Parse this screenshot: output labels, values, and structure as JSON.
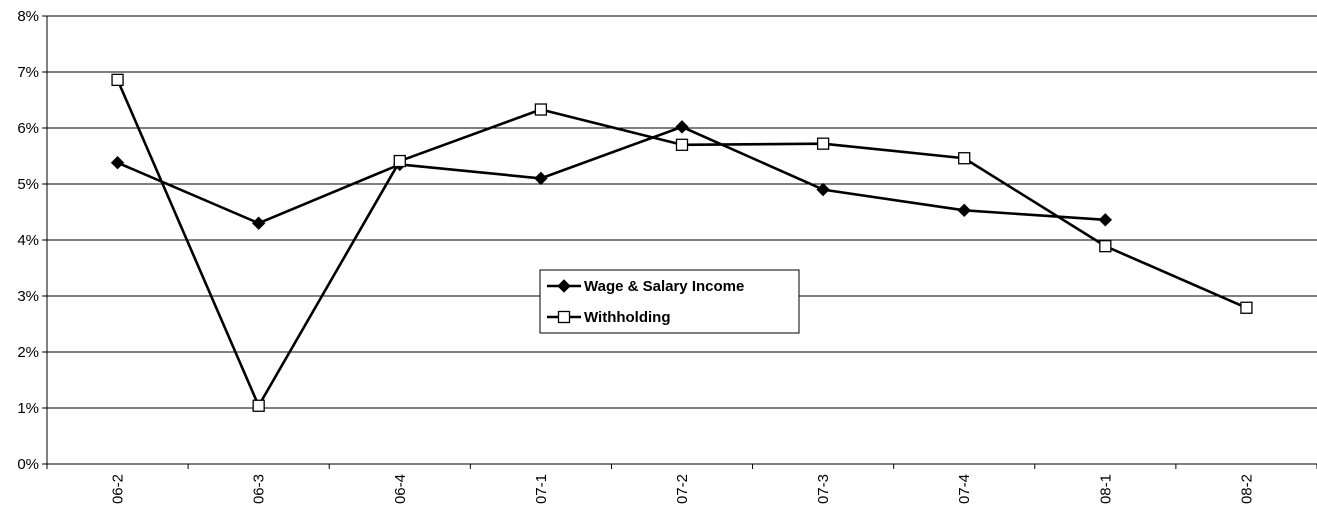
{
  "chart_data": {
    "type": "line",
    "title": "",
    "xlabel": "",
    "ylabel": "",
    "categories": [
      "06-2",
      "06-3",
      "06-4",
      "07-1",
      "07-2",
      "07-3",
      "07-4",
      "08-1",
      "08-2"
    ],
    "ylim": [
      0,
      8
    ],
    "yticks": [
      "0%",
      "1%",
      "2%",
      "3%",
      "4%",
      "5%",
      "6%",
      "7%",
      "8%"
    ],
    "grid": "horizontal",
    "legend": "center",
    "series": [
      {
        "name": "Wage & Salary Income",
        "marker": "filled-diamond",
        "color": "#000000",
        "values": [
          5.38,
          4.3,
          5.35,
          5.1,
          6.02,
          4.9,
          4.53,
          4.36,
          null
        ]
      },
      {
        "name": "Withholding",
        "marker": "open-square",
        "color": "#000000",
        "values": [
          6.86,
          1.04,
          5.41,
          6.33,
          5.7,
          5.72,
          5.46,
          3.89,
          2.79
        ]
      }
    ]
  }
}
